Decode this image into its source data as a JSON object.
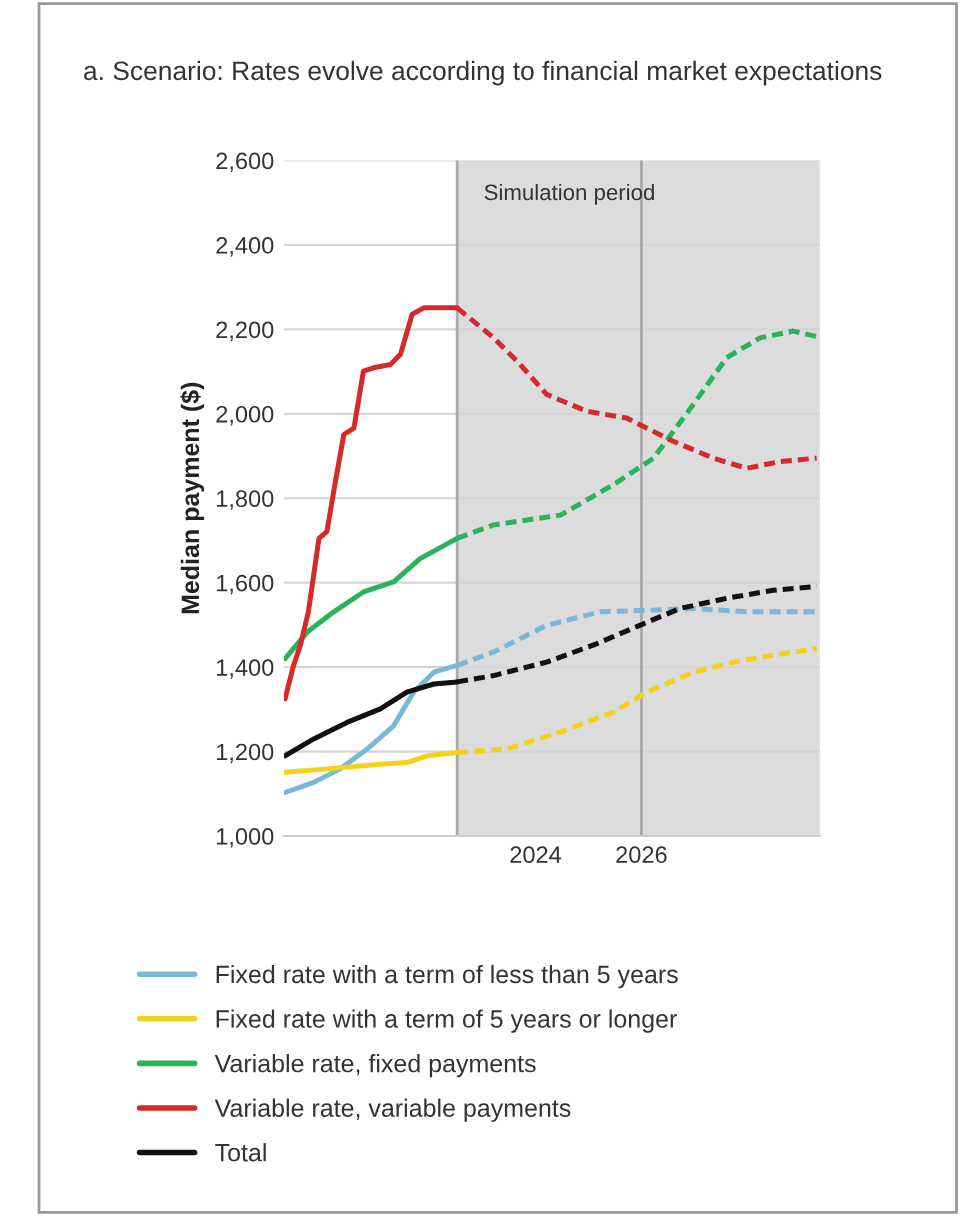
{
  "chart_data": {
    "type": "line",
    "title": "a. Scenario: Rates evolve according to financial market expectations",
    "ylabel": "Median payment ($)",
    "xlim": [
      2019.25,
      2029.37
    ],
    "xticks": [
      2024,
      2026
    ],
    "ylim": [
      1000,
      2600
    ],
    "yticks": [
      {
        "value": 1000,
        "label": "1,000"
      },
      {
        "value": 1200,
        "label": "1,200"
      },
      {
        "value": 1400,
        "label": "1,400"
      },
      {
        "value": 1600,
        "label": "1,600"
      },
      {
        "value": 1800,
        "label": "1,800"
      },
      {
        "value": 2000,
        "label": "2,000"
      },
      {
        "value": 2200,
        "label": "2,200"
      },
      {
        "value": 2400,
        "label": "2,400"
      },
      {
        "value": 2600,
        "label": "2,600"
      }
    ],
    "grid": "y",
    "legend": "bottom",
    "marker": "none",
    "bands": [
      {
        "axis": "x",
        "from": 2022.52,
        "to": 2029.37,
        "label": "Simulation period",
        "color": "#dcdcdc"
      }
    ],
    "ref_lines": [
      {
        "axis": "x",
        "value": 2022.52,
        "color": "#aaaaaa"
      },
      {
        "axis": "x",
        "value": 2026,
        "color": "#aaaaaa"
      }
    ],
    "series": [
      {
        "name": "Fixed rate with a term of less than 5 years",
        "color": "#7ab8d9",
        "line_style": "solid",
        "x": [
          2019.27,
          2019.81,
          2020.31,
          2020.82,
          2021.32,
          2021.7,
          2022.08,
          2022.52
        ],
        "values": [
          1103,
          1127,
          1159,
          1206,
          1261,
          1341,
          1388,
          1404
        ]
      },
      {
        "name": "Fixed rate with a term of 5 years or longer",
        "color": "#f2d21b",
        "line_style": "solid",
        "x": [
          2019.27,
          2020.06,
          2021.07,
          2021.57,
          2021.95,
          2022.52
        ],
        "values": [
          1151,
          1159,
          1170,
          1174,
          1190,
          1198
        ]
      },
      {
        "name": "Variable rate, fixed payments",
        "color": "#2bb35a",
        "line_style": "solid",
        "x": [
          2019.27,
          2019.69,
          2020.19,
          2020.75,
          2021.32,
          2021.82,
          2022.52
        ],
        "values": [
          1420,
          1483,
          1531,
          1578,
          1602,
          1657,
          1705
        ]
      },
      {
        "name": "Variable rate, variable payments",
        "color": "#d42a2a",
        "line_style": "solid",
        "x": [
          2019.27,
          2019.43,
          2019.56,
          2019.71,
          2019.91,
          2020.06,
          2020.21,
          2020.38,
          2020.57,
          2020.75,
          2020.94,
          2021.26,
          2021.45,
          2021.67,
          2021.89,
          2022.52
        ],
        "values": [
          1325,
          1404,
          1452,
          1531,
          1705,
          1721,
          1832,
          1951,
          1966,
          2101,
          2109,
          2117,
          2141,
          2236,
          2251,
          2251
        ]
      },
      {
        "name": "Total",
        "color": "#111111",
        "line_style": "solid",
        "x": [
          2019.27,
          2019.81,
          2020.44,
          2021.07,
          2021.57,
          2022.08,
          2022.52
        ],
        "values": [
          1190,
          1230,
          1269,
          1301,
          1341,
          1360,
          1365
        ]
      },
      {
        "color": "#7ab8d9",
        "line_style": "dashed",
        "x": [
          2022.52,
          2023.21,
          2024.21,
          2025.22,
          2025.97,
          2026.98,
          2027.99,
          2029.31
        ],
        "values": [
          1404,
          1436,
          1499,
          1531,
          1534,
          1539,
          1531,
          1531
        ]
      },
      {
        "color": "#f2d21b",
        "line_style": "dashed",
        "x": [
          2022.52,
          2023.46,
          2024.47,
          2025.47,
          2026.1,
          2026.98,
          2027.74,
          2028.49,
          2029.31
        ],
        "values": [
          1198,
          1206,
          1246,
          1293,
          1341,
          1388,
          1412,
          1428,
          1444
        ]
      },
      {
        "color": "#2bb35a",
        "line_style": "dashed",
        "x": [
          2022.52,
          2023.21,
          2024.47,
          2025.47,
          2026.23,
          2026.98,
          2027.61,
          2028.24,
          2028.87,
          2029.31
        ],
        "values": [
          1705,
          1737,
          1760,
          1832,
          1895,
          2022,
          2133,
          2180,
          2196,
          2183
        ]
      },
      {
        "color": "#d42a2a",
        "line_style": "dashed",
        "x": [
          2022.52,
          2023.21,
          2023.71,
          2024.21,
          2024.97,
          2025.72,
          2026.6,
          2027.36,
          2027.99,
          2028.62,
          2029.31
        ],
        "values": [
          2251,
          2180,
          2117,
          2046,
          2006,
          1990,
          1935,
          1895,
          1871,
          1887,
          1895
        ]
      },
      {
        "color": "#111111",
        "line_style": "dashed",
        "x": [
          2022.52,
          2023.21,
          2024.21,
          2025.09,
          2025.97,
          2026.73,
          2027.61,
          2028.49,
          2029.31
        ],
        "values": [
          1365,
          1380,
          1412,
          1452,
          1499,
          1539,
          1563,
          1582,
          1591
        ]
      }
    ]
  }
}
